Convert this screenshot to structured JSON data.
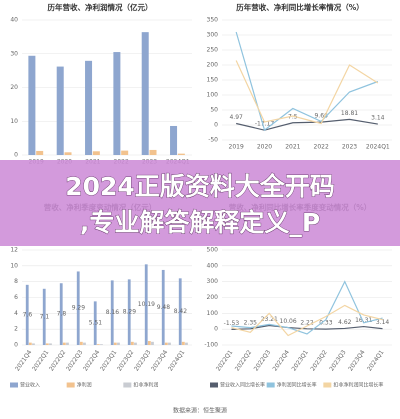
{
  "chart_data": [
    {
      "type": "bar",
      "title": "历年营收、净利润情况（亿元）",
      "categories": [
        "2019",
        "2020",
        "2021",
        "2022",
        "2023",
        "2024Q1"
      ],
      "series": [
        {
          "name": "营业收入",
          "color": "#8ea6cf",
          "values": [
            29.4,
            26.2,
            27.9,
            30.5,
            36.4,
            8.6
          ]
        },
        {
          "name": "净利润",
          "color": "#f2c28e",
          "values": [
            1.2,
            0.8,
            1.1,
            1.3,
            1.5,
            0.4
          ]
        }
      ],
      "ylim": [
        0,
        40
      ],
      "yticks": [
        0,
        10,
        20,
        30,
        40
      ],
      "grid": true,
      "legend": false,
      "rotate_labels": false
    },
    {
      "type": "line",
      "title": "历年营收、净利同比增长率情况（%）",
      "categories": [
        "2019",
        "2020",
        "2021",
        "2022",
        "2023",
        "2024Q1"
      ],
      "series": [
        {
          "name": "营业收入同比增长率",
          "color": "#555e6e",
          "values": [
            4.97,
            -17.17,
            7.5,
            9.66,
            18.81,
            3.14
          ],
          "labels": true
        },
        {
          "name": "净利润同比增长率",
          "color": "#8fc3de",
          "values": [
            310,
            -17,
            55,
            12,
            110,
            145
          ]
        },
        {
          "name": "扣非净利润同比增长率",
          "color": "#f3d5a3",
          "values": [
            215,
            10,
            30,
            5,
            200,
            140
          ]
        }
      ],
      "ylim": [
        -50,
        350
      ],
      "yticks": [
        -50,
        0,
        50,
        100,
        150,
        200,
        250,
        300,
        350
      ],
      "grid": true,
      "legend": false,
      "rotate_labels": false
    },
    {
      "type": "bar",
      "title": "营收、净利季度变动情况（亿元）",
      "categories": [
        "2021Q4",
        "2022Q1",
        "2022Q2",
        "2022Q3",
        "2022Q4",
        "2023Q1",
        "2023Q2",
        "2023Q3",
        "2023Q4",
        "2024Q1"
      ],
      "series": [
        {
          "name": "营业收入",
          "color": "#8ea6cf",
          "values": [
            7.6,
            7.1,
            7.8,
            9.29,
            5.51,
            8.16,
            8.29,
            10.19,
            9.48,
            8.42
          ],
          "labels": true
        },
        {
          "name": "净利润",
          "color": "#f2c28e",
          "values": [
            0.3,
            0.2,
            0.3,
            0.4,
            0.1,
            0.3,
            0.4,
            0.5,
            0.3,
            0.4
          ]
        },
        {
          "name": "扣非净利润",
          "color": "#c9ccd2",
          "values": [
            0.2,
            0.2,
            0.3,
            0.3,
            0.1,
            0.3,
            0.3,
            0.4,
            0.3,
            0.3
          ]
        }
      ],
      "ylim": [
        0,
        12
      ],
      "yticks": [
        0,
        2,
        4,
        6,
        8,
        10,
        12
      ],
      "grid": true,
      "legend": true,
      "rotate_labels": true
    },
    {
      "type": "line",
      "title": "营收、净利同比增长率季度变动情况（%）",
      "categories": [
        "2022Q1",
        "2022Q2",
        "2022Q3",
        "2022Q4",
        "2023Q1",
        "2023Q2",
        "2023Q3",
        "2023Q4",
        "2024Q1"
      ],
      "series": [
        {
          "name": "营业收入同比增长率",
          "color": "#555e6e",
          "values": [
            -1.53,
            2.35,
            23.21,
            10.06,
            2.22,
            0.33,
            4.62,
            16.31,
            3.14
          ],
          "labels": true
        },
        {
          "name": "净利润同比增长率",
          "color": "#8fc3de",
          "values": [
            20,
            10,
            30,
            10,
            -30,
            60,
            300,
            40,
            70
          ]
        },
        {
          "name": "扣非净利润同比增长率",
          "color": "#f3d5a3",
          "values": [
            10,
            -20,
            100,
            -40,
            20,
            80,
            150,
            90,
            60
          ]
        }
      ],
      "ylim": [
        -100,
        500
      ],
      "yticks": [
        -100,
        0,
        100,
        200,
        300,
        400,
        500
      ],
      "grid": true,
      "legend": true,
      "rotate_labels": true
    }
  ],
  "banner": {
    "line1": "2024正版资料大全开码",
    "line2": ",专业解答解释定义_P"
  },
  "footer": "数据来源：恒生聚源"
}
